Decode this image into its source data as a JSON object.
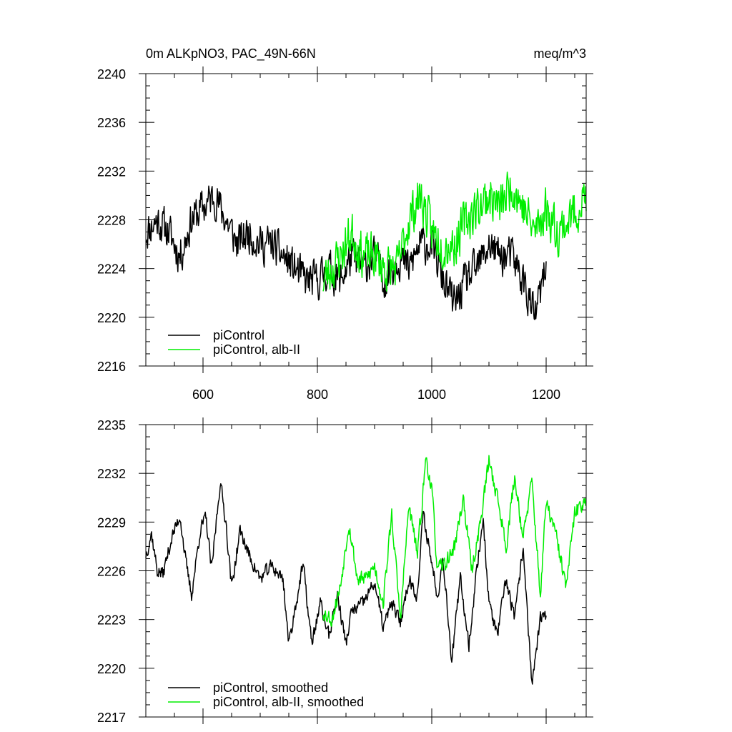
{
  "chart_data": [
    {
      "type": "line",
      "title_left": "0m ALKpNO3, PAC_49N-66N",
      "title_right": "meq/m^3",
      "xlabel": "",
      "ylabel": "",
      "xlim": [
        500,
        1270
      ],
      "ylim": [
        2216,
        2240
      ],
      "xticks": [
        600,
        800,
        1000,
        1200
      ],
      "xtick_labels": [
        "600",
        "800",
        "1000",
        "1200"
      ],
      "yticks": [
        2216,
        2220,
        2224,
        2228,
        2232,
        2236,
        2240
      ],
      "ytick_labels": [
        "2216",
        "2220",
        "2224",
        "2228",
        "2232",
        "2236",
        "2240"
      ],
      "series": [
        {
          "name": "piControl",
          "color": "#000000",
          "x_start": 500,
          "x_end": 1200,
          "anchors": [
            [
              500,
              2227
            ],
            [
              520,
              2228
            ],
            [
              540,
              2227
            ],
            [
              560,
              2225
            ],
            [
              580,
              2228
            ],
            [
              600,
              2229
            ],
            [
              620,
              2230
            ],
            [
              640,
              2228
            ],
            [
              660,
              2226
            ],
            [
              680,
              2227
            ],
            [
              700,
              2226
            ],
            [
              720,
              2226
            ],
            [
              740,
              2225
            ],
            [
              760,
              2224
            ],
            [
              780,
              2223
            ],
            [
              800,
              2223
            ],
            [
              820,
              2224
            ],
            [
              840,
              2223
            ],
            [
              860,
              2225
            ],
            [
              880,
              2224
            ],
            [
              900,
              2225
            ],
            [
              920,
              2223
            ],
            [
              940,
              2225
            ],
            [
              960,
              2224
            ],
            [
              980,
              2226
            ],
            [
              1000,
              2226
            ],
            [
              1020,
              2223
            ],
            [
              1040,
              2221
            ],
            [
              1060,
              2223
            ],
            [
              1080,
              2224
            ],
            [
              1100,
              2226
            ],
            [
              1120,
              2225
            ],
            [
              1140,
              2225
            ],
            [
              1160,
              2223
            ],
            [
              1180,
              2220
            ],
            [
              1200,
              2224
            ]
          ],
          "noise": 2.2,
          "seed": 11
        },
        {
          "name": "piControl, alb-II",
          "color": "#00ee00",
          "x_start": 810,
          "x_end": 1270,
          "anchors": [
            [
              810,
              2223
            ],
            [
              840,
              2225
            ],
            [
              860,
              2227
            ],
            [
              880,
              2225
            ],
            [
              900,
              2225
            ],
            [
              920,
              2224
            ],
            [
              940,
              2224
            ],
            [
              960,
              2228
            ],
            [
              980,
              2230
            ],
            [
              1000,
              2227
            ],
            [
              1020,
              2226
            ],
            [
              1040,
              2226
            ],
            [
              1060,
              2228
            ],
            [
              1080,
              2229
            ],
            [
              1100,
              2230
            ],
            [
              1120,
              2229
            ],
            [
              1140,
              2231
            ],
            [
              1160,
              2229
            ],
            [
              1180,
              2227
            ],
            [
              1200,
              2229
            ],
            [
              1220,
              2227
            ],
            [
              1240,
              2228
            ],
            [
              1270,
              2230
            ]
          ],
          "noise": 2.6,
          "seed": 23
        }
      ],
      "legend": [
        "piControl",
        "piControl, alb-II"
      ],
      "legend_position": "bottom-left"
    },
    {
      "type": "line",
      "title_left": "",
      "title_right": "",
      "xlabel": "",
      "ylabel": "",
      "xlim": [
        500,
        1270
      ],
      "ylim": [
        2217,
        2235
      ],
      "xticks": [
        600,
        800,
        1000,
        1200
      ],
      "xtick_labels": [],
      "yticks": [
        2217,
        2220,
        2223,
        2226,
        2229,
        2232,
        2235
      ],
      "ytick_labels": [
        "2217",
        "2220",
        "2223",
        "2226",
        "2229",
        "2232",
        "2235"
      ],
      "series": [
        {
          "name": "piControl, smoothed",
          "color": "#000000",
          "x_start": 500,
          "x_end": 1200,
          "anchors": [
            [
              500,
              2227
            ],
            [
              510,
              2228.3
            ],
            [
              520,
              2226
            ],
            [
              530,
              2225.8
            ],
            [
              545,
              2228
            ],
            [
              560,
              2229.4
            ],
            [
              570,
              2226.5
            ],
            [
              580,
              2224.5
            ],
            [
              595,
              2228.5
            ],
            [
              605,
              2229.3
            ],
            [
              615,
              2226
            ],
            [
              630,
              2231.5
            ],
            [
              640,
              2229
            ],
            [
              650,
              2225
            ],
            [
              665,
              2228.5
            ],
            [
              680,
              2227
            ],
            [
              700,
              2225.5
            ],
            [
              720,
              2226.3
            ],
            [
              740,
              2225.5
            ],
            [
              750,
              2221.5
            ],
            [
              760,
              2223.5
            ],
            [
              775,
              2226.4
            ],
            [
              790,
              2221.5
            ],
            [
              805,
              2224
            ],
            [
              820,
              2222
            ],
            [
              835,
              2224.5
            ],
            [
              850,
              2221.5
            ],
            [
              860,
              2223.5
            ],
            [
              880,
              2224
            ],
            [
              900,
              2225.3
            ],
            [
              915,
              2222.5
            ],
            [
              930,
              2224
            ],
            [
              945,
              2222.8
            ],
            [
              960,
              2225.5
            ],
            [
              975,
              2224.5
            ],
            [
              985,
              2229.5
            ],
            [
              995,
              2227.5
            ],
            [
              1010,
              2224.5
            ],
            [
              1020,
              2226.8
            ],
            [
              1035,
              2220.5
            ],
            [
              1050,
              2225.5
            ],
            [
              1065,
              2221.5
            ],
            [
              1080,
              2226.5
            ],
            [
              1090,
              2229.2
            ],
            [
              1100,
              2224
            ],
            [
              1115,
              2222
            ],
            [
              1130,
              2225.5
            ],
            [
              1145,
              2223
            ],
            [
              1160,
              2227.5
            ],
            [
              1175,
              2219
            ],
            [
              1190,
              2223
            ],
            [
              1200,
              2223.2
            ]
          ],
          "noise": 0.6,
          "seed": 37
        },
        {
          "name": "piControl, alb-II, smoothed",
          "color": "#00ee00",
          "x_start": 810,
          "x_end": 1270,
          "anchors": [
            [
              810,
              2223.5
            ],
            [
              825,
              2223
            ],
            [
              840,
              2225
            ],
            [
              855,
              2229
            ],
            [
              870,
              2225.5
            ],
            [
              885,
              2225.5
            ],
            [
              900,
              2226.3
            ],
            [
              915,
              2224
            ],
            [
              930,
              2229.5
            ],
            [
              945,
              2223
            ],
            [
              960,
              2230
            ],
            [
              975,
              2227
            ],
            [
              990,
              2233
            ],
            [
              1000,
              2231
            ],
            [
              1010,
              2226
            ],
            [
              1025,
              2226.5
            ],
            [
              1040,
              2227.5
            ],
            [
              1055,
              2230.5
            ],
            [
              1070,
              2226
            ],
            [
              1085,
              2229
            ],
            [
              1100,
              2232.8
            ],
            [
              1115,
              2230.5
            ],
            [
              1130,
              2227.5
            ],
            [
              1145,
              2231.8
            ],
            [
              1160,
              2228
            ],
            [
              1175,
              2231.5
            ],
            [
              1190,
              2224.5
            ],
            [
              1200,
              2230.2
            ],
            [
              1215,
              2228.5
            ],
            [
              1235,
              2225
            ],
            [
              1250,
              2229.5
            ],
            [
              1270,
              2230.5
            ]
          ],
          "noise": 0.7,
          "seed": 53
        }
      ],
      "legend": [
        "piControl, smoothed",
        "piControl, alb-II, smoothed"
      ],
      "legend_position": "bottom-left"
    }
  ]
}
